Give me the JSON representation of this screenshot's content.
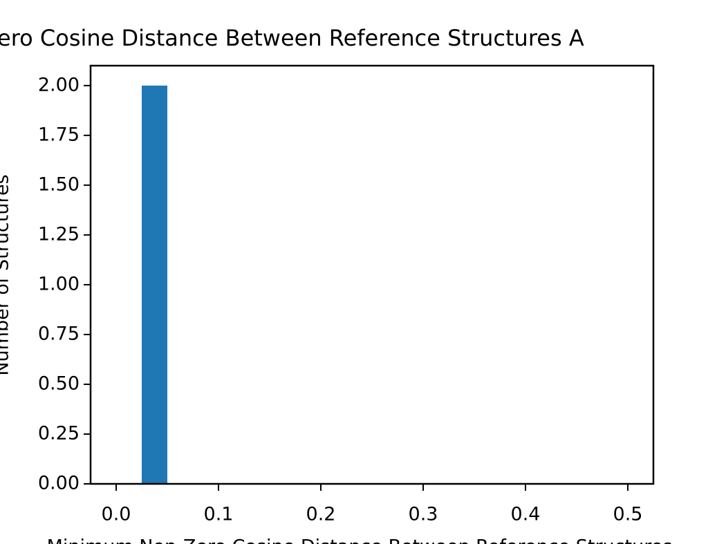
{
  "chart_data": {
    "type": "histogram",
    "title": "ero Cosine Distance Between Reference Structures A",
    "x_label": "Minimum Non-Zero Cosine Distance Between Reference Structures",
    "y_label": "Number of Structures",
    "bins": [
      0,
      0.025,
      0.05,
      0.075,
      0.1,
      0.125,
      0.15,
      0.175,
      0.2,
      0.225,
      0.25,
      0.275,
      0.3,
      0.325,
      0.35,
      0.375,
      0.4,
      0.425,
      0.45,
      0.475,
      0.5
    ],
    "counts": [
      0,
      2,
      0,
      0,
      0,
      0,
      0,
      0,
      0,
      0,
      0,
      0,
      0,
      0,
      0,
      0,
      0,
      0,
      0,
      0
    ],
    "color": "#1f77b4",
    "xlim": [
      -0.025,
      0.525
    ],
    "ylim": [
      0,
      2.1
    ],
    "xticks": [
      {
        "value": 0,
        "label": "0.0"
      },
      0.1,
      0.2,
      0.3,
      0.4,
      0.5
    ],
    "yticks": [
      {
        "value": 0,
        "label": "0.00"
      },
      0.25,
      {
        "value": 0.5,
        "label": "0.50"
      },
      0.75,
      {
        "value": 1,
        "label": "1.00"
      },
      1.25,
      {
        "value": 1.5,
        "label": "1.50"
      },
      1.75,
      {
        "value": 2,
        "label": "2.00"
      }
    ]
  }
}
